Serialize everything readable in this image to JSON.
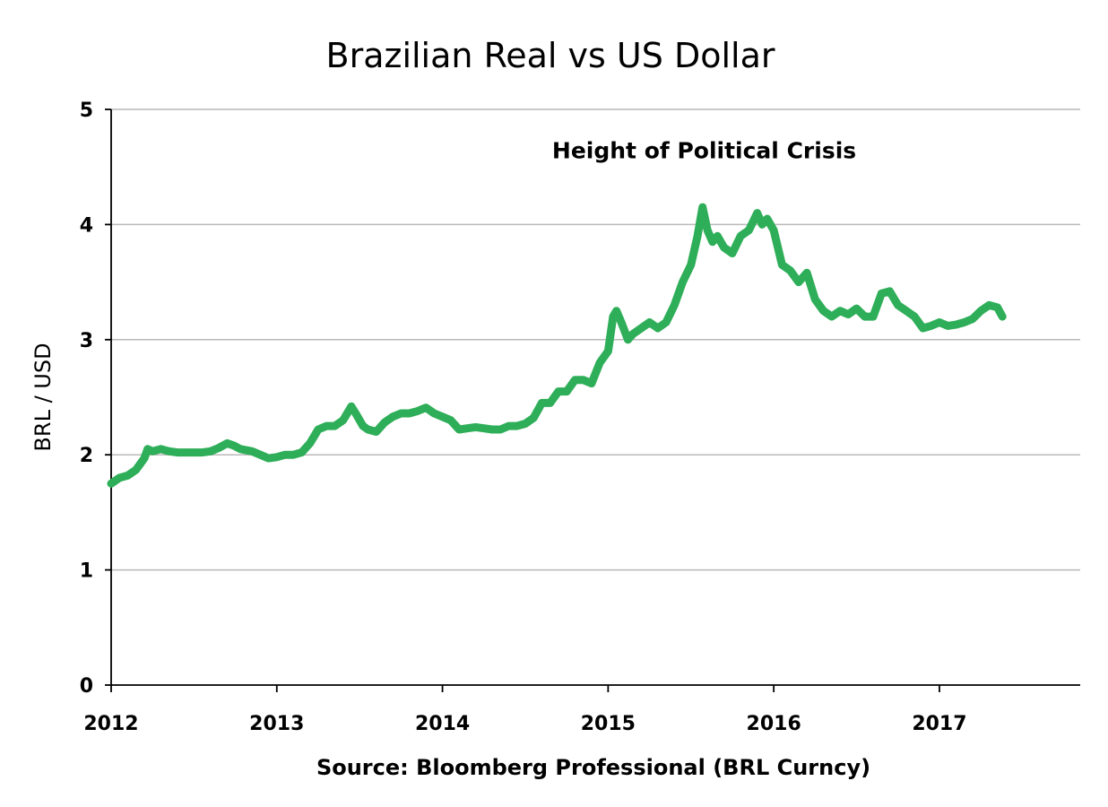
{
  "chart_data": {
    "type": "line",
    "title": "Brazilian Real vs US Dollar",
    "ylabel": "BRL / USD",
    "xlabel": "",
    "source": "Source:  Bloomberg Professional (BRL Curncy)",
    "annotation": {
      "text": "Height of Political Crisis",
      "x": 2015.58,
      "y": 4.2
    },
    "xlim": [
      2012,
      2017.85
    ],
    "ylim": [
      0,
      5
    ],
    "x_ticks": [
      2012,
      2013,
      2014,
      2015,
      2016,
      2017
    ],
    "x_tick_labels": [
      "2012",
      "2013",
      "2014",
      "2015",
      "2016",
      "2017"
    ],
    "y_ticks": [
      0,
      1,
      2,
      3,
      4,
      5
    ],
    "y_tick_labels": [
      "0",
      "1",
      "2",
      "3",
      "4",
      "5"
    ],
    "grid": true,
    "color": "#2eae58",
    "series": [
      {
        "x": [
          2012.0,
          2012.05,
          2012.1,
          2012.15,
          2012.2,
          2012.22,
          2012.25,
          2012.3,
          2012.35,
          2012.4,
          2012.45,
          2012.5,
          2012.55,
          2012.6,
          2012.65,
          2012.7,
          2012.74,
          2012.78,
          2012.85,
          2012.9,
          2012.95,
          2013.0,
          2013.05,
          2013.1,
          2013.15,
          2013.2,
          2013.25,
          2013.3,
          2013.35,
          2013.4,
          2013.45,
          2013.48,
          2013.52,
          2013.55,
          2013.6,
          2013.65,
          2013.7,
          2013.75,
          2013.8,
          2013.85,
          2013.9,
          2013.95,
          2014.0,
          2014.05,
          2014.1,
          2014.15,
          2014.2,
          2014.25,
          2014.3,
          2014.35,
          2014.4,
          2014.45,
          2014.5,
          2014.55,
          2014.6,
          2014.65,
          2014.7,
          2014.75,
          2014.8,
          2014.85,
          2014.9,
          2014.95,
          2015.0,
          2015.03,
          2015.05,
          2015.08,
          2015.12,
          2015.15,
          2015.2,
          2015.25,
          2015.3,
          2015.35,
          2015.4,
          2015.45,
          2015.5,
          2015.54,
          2015.57,
          2015.6,
          2015.63,
          2015.66,
          2015.7,
          2015.75,
          2015.8,
          2015.85,
          2015.9,
          2015.93,
          2015.96,
          2016.0,
          2016.05,
          2016.1,
          2016.15,
          2016.2,
          2016.25,
          2016.3,
          2016.35,
          2016.4,
          2016.45,
          2016.5,
          2016.55,
          2016.6,
          2016.65,
          2016.7,
          2016.75,
          2016.8,
          2016.85,
          2016.9,
          2016.95,
          2017.0,
          2017.05,
          2017.1,
          2017.15,
          2017.2,
          2017.25,
          2017.3,
          2017.35,
          2017.38
        ],
        "y": [
          1.75,
          1.8,
          1.82,
          1.87,
          1.97,
          2.05,
          2.03,
          2.05,
          2.03,
          2.02,
          2.02,
          2.02,
          2.02,
          2.03,
          2.06,
          2.1,
          2.08,
          2.05,
          2.03,
          2.0,
          1.97,
          1.98,
          2.0,
          2.0,
          2.02,
          2.1,
          2.22,
          2.25,
          2.25,
          2.3,
          2.42,
          2.35,
          2.25,
          2.22,
          2.2,
          2.28,
          2.33,
          2.36,
          2.36,
          2.38,
          2.41,
          2.36,
          2.33,
          2.3,
          2.22,
          2.23,
          2.24,
          2.23,
          2.22,
          2.22,
          2.25,
          2.25,
          2.27,
          2.32,
          2.45,
          2.45,
          2.55,
          2.55,
          2.65,
          2.65,
          2.62,
          2.8,
          2.9,
          3.2,
          3.25,
          3.15,
          3.0,
          3.05,
          3.1,
          3.15,
          3.1,
          3.15,
          3.3,
          3.5,
          3.65,
          3.9,
          4.15,
          3.95,
          3.85,
          3.9,
          3.8,
          3.75,
          3.9,
          3.95,
          4.1,
          4.0,
          4.05,
          3.95,
          3.65,
          3.6,
          3.5,
          3.58,
          3.35,
          3.25,
          3.2,
          3.25,
          3.22,
          3.27,
          3.2,
          3.2,
          3.4,
          3.42,
          3.3,
          3.25,
          3.2,
          3.1,
          3.12,
          3.15,
          3.12,
          3.13,
          3.15,
          3.18,
          3.25,
          3.3,
          3.28,
          3.2
        ]
      }
    ]
  }
}
